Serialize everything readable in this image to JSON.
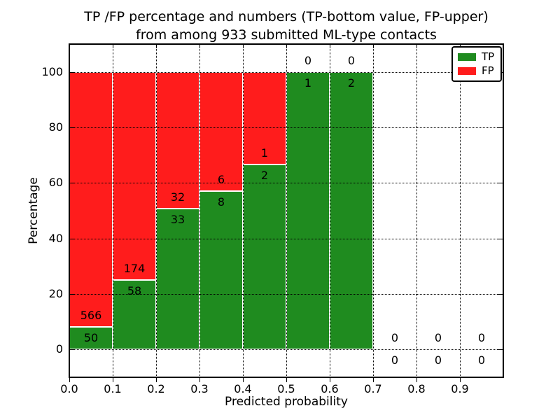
{
  "title": {
    "line1": "TP /FP percentage and numbers (TP-bottom value, FP-upper)",
    "line2": "from among 933 submitted ML-type contacts"
  },
  "axes": {
    "xlabel": "Predicted probability",
    "ylabel": "Percentage"
  },
  "legend": {
    "items": [
      {
        "label": "TP",
        "color": "#1f8b1f"
      },
      {
        "label": "FP",
        "color": "#ff1c1c"
      }
    ]
  },
  "chart_data": {
    "type": "bar",
    "stacked": true,
    "stack_normalized_to_percent": 100,
    "title": "TP /FP percentage and numbers (TP-bottom value, FP-upper)\nfrom among 933 submitted ML-type contacts",
    "xlabel": "Predicted probability",
    "ylabel": "Percentage",
    "total_contacts": 933,
    "bin_width": 0.1,
    "bins": [
      {
        "x_start": 0.0,
        "tp": 50,
        "fp": 566,
        "tp_pct": 8.1,
        "fp_pct": 91.9
      },
      {
        "x_start": 0.1,
        "tp": 58,
        "fp": 174,
        "tp_pct": 25.0,
        "fp_pct": 75.0
      },
      {
        "x_start": 0.2,
        "tp": 33,
        "fp": 32,
        "tp_pct": 50.8,
        "fp_pct": 49.2
      },
      {
        "x_start": 0.3,
        "tp": 8,
        "fp": 6,
        "tp_pct": 57.1,
        "fp_pct": 42.9
      },
      {
        "x_start": 0.4,
        "tp": 2,
        "fp": 1,
        "tp_pct": 66.7,
        "fp_pct": 33.3
      },
      {
        "x_start": 0.5,
        "tp": 1,
        "fp": 0,
        "tp_pct": 100.0,
        "fp_pct": 0.0
      },
      {
        "x_start": 0.6,
        "tp": 2,
        "fp": 0,
        "tp_pct": 100.0,
        "fp_pct": 0.0
      },
      {
        "x_start": 0.7,
        "tp": 0,
        "fp": 0,
        "tp_pct": 0.0,
        "fp_pct": 0.0
      },
      {
        "x_start": 0.8,
        "tp": 0,
        "fp": 0,
        "tp_pct": 0.0,
        "fp_pct": 0.0
      },
      {
        "x_start": 0.9,
        "tp": 0,
        "fp": 0,
        "tp_pct": 0.0,
        "fp_pct": 0.0
      }
    ],
    "series": [
      {
        "name": "TP",
        "color": "#1f8b1f"
      },
      {
        "name": "FP",
        "color": "#ff1c1c"
      }
    ],
    "xlim": [
      0.0,
      1.0
    ],
    "ylim": [
      -10,
      110
    ],
    "xticks": [
      "0.0",
      "0.1",
      "0.2",
      "0.3",
      "0.4",
      "0.5",
      "0.6",
      "0.7",
      "0.8",
      "0.9"
    ],
    "yticks": [
      "0",
      "20",
      "40",
      "60",
      "80",
      "100"
    ],
    "grid": "dotted, drawn above bars",
    "legend_position": "upper right",
    "bar_label_offset_pct": 4
  }
}
